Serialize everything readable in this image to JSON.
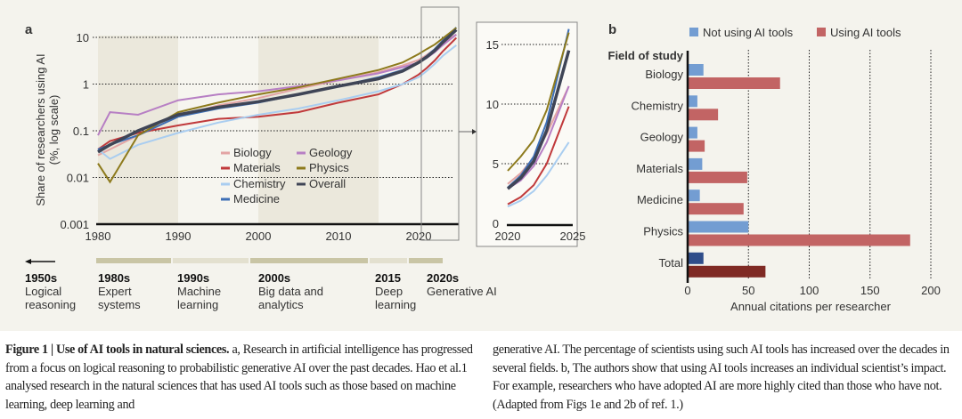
{
  "chart_data": [
    {
      "type": "line",
      "panel": "a",
      "ylabel": "Share of researchers using AI\n(%, log scale)",
      "yscale": "log",
      "ylim": [
        0.001,
        15
      ],
      "yticks": [
        "10",
        "1",
        "0.1",
        "0.01",
        "0.001"
      ],
      "xticks": [
        "1980",
        "1990",
        "2000",
        "2010",
        "2020"
      ],
      "xlim": [
        1980,
        2024.7
      ],
      "x": [
        1980,
        1981.5,
        1985,
        1990,
        1995,
        2000,
        2005,
        2010,
        2015,
        2018,
        2020,
        2021,
        2022,
        2023,
        2024.7
      ],
      "series": [
        {
          "name": "Biology",
          "color": "#e3a4a4",
          "values": [
            0.03,
            0.04,
            0.08,
            0.2,
            0.35,
            0.5,
            0.8,
            1.2,
            1.8,
            2.5,
            3.3,
            4.2,
            5.5,
            7.5,
            11.5
          ]
        },
        {
          "name": "Materials",
          "color": "#c0393b",
          "values": [
            0.04,
            0.06,
            0.09,
            0.13,
            0.18,
            0.2,
            0.25,
            0.4,
            0.6,
            1.0,
            1.6,
            2.2,
            3.2,
            5,
            9.8
          ]
        },
        {
          "name": "Chemistry",
          "color": "#a9cdf0",
          "values": [
            0.04,
            0.025,
            0.05,
            0.09,
            0.15,
            0.22,
            0.3,
            0.45,
            0.7,
            1.0,
            1.4,
            1.9,
            2.7,
            4,
            6.8
          ]
        },
        {
          "name": "Medicine",
          "color": "#3d6fb6",
          "values": [
            0.04,
            0.05,
            0.08,
            0.2,
            0.3,
            0.4,
            0.6,
            0.9,
            1.4,
            2.0,
            3.0,
            4,
            5.6,
            8.5,
            16.3
          ]
        },
        {
          "name": "Geology",
          "color": "#b77fc4",
          "values": [
            0.08,
            0.25,
            0.22,
            0.45,
            0.6,
            0.7,
            0.9,
            1.2,
            1.7,
            2.3,
            2.9,
            3.6,
            4.8,
            6.8,
            11.5
          ]
        },
        {
          "name": "Physics",
          "color": "#8d7a1c",
          "values": [
            0.02,
            0.008,
            0.08,
            0.25,
            0.4,
            0.6,
            0.85,
            1.3,
            2.0,
            2.9,
            4.4,
            5.6,
            7,
            9.5,
            16
          ]
        },
        {
          "name": "Overall",
          "color": "#3f4556",
          "values": [
            0.035,
            0.05,
            0.1,
            0.22,
            0.32,
            0.42,
            0.6,
            0.9,
            1.3,
            1.9,
            2.9,
            3.8,
            5.2,
            7.8,
            14.5
          ]
        }
      ],
      "inset": {
        "xlim": [
          2020,
          2025
        ],
        "ylim": [
          0,
          16
        ],
        "yticks": [
          "15",
          "10",
          "5",
          "0"
        ],
        "xticks": [
          "2020",
          "2025"
        ]
      }
    },
    {
      "type": "bar",
      "panel": "b",
      "orientation": "horizontal",
      "xlabel": "Annual citations per researcher",
      "ylabel": "Field of study",
      "xlim": [
        0,
        200
      ],
      "xticks": [
        "0",
        "50",
        "100",
        "150",
        "200"
      ],
      "categories": [
        "Biology",
        "Chemistry",
        "Geology",
        "Materials",
        "Medicine",
        "Physics",
        "Total"
      ],
      "series": [
        {
          "name": "Not using AI tools",
          "color": "#739dd2",
          "total_color": "#2f4d8a",
          "values": [
            13,
            8,
            8,
            12,
            10,
            50,
            13
          ]
        },
        {
          "name": "Using AI tools",
          "color": "#c26464",
          "total_color": "#7f2a24",
          "values": [
            76,
            25,
            14,
            49,
            46,
            183,
            64
          ]
        }
      ]
    }
  ],
  "panel_labels": {
    "a": "a",
    "b": "b"
  },
  "timeline": [
    {
      "year": "1950s",
      "label": "Logical reasoning"
    },
    {
      "year": "1980s",
      "label": "Expert systems"
    },
    {
      "year": "1990s",
      "label": "Machine learning"
    },
    {
      "year": "2000s",
      "label": "Big data and analytics"
    },
    {
      "year": "2015",
      "label": "Deep learning"
    },
    {
      "year": "2020s",
      "label": "Generative AI"
    }
  ],
  "caption": {
    "title": "Figure 1 | Use of AI tools in natural sciences.",
    "col1": " a, Research in artificial intelligence has progressed from a focus on logical reasoning to probabilistic generative AI over the past decades. Hao et al.1 analysed research in the natural sciences that has used AI tools such as those based on machine learning, deep learning and",
    "col2": "generative AI. The percentage of scientists using such AI tools has increased over the decades in several fields. b, The authors show that using AI tools increases an individual scientist’s impact. For example, researchers who have adopted AI are more highly cited than those who have not. (Adapted from Figs 1e and 2b of ref. 1.)"
  }
}
